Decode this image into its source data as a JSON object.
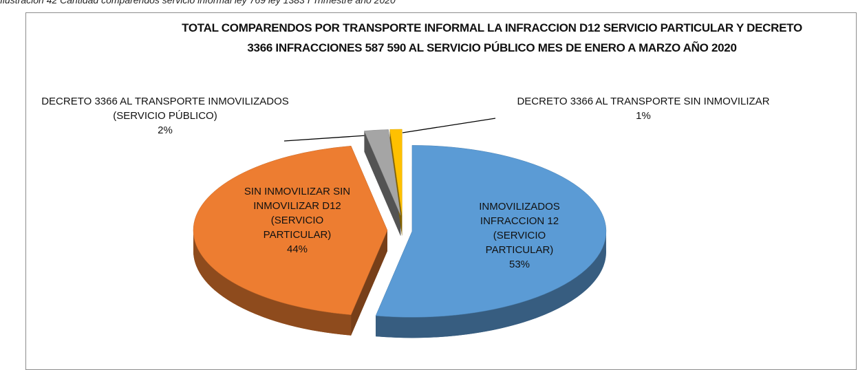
{
  "caption": "Ilustración 42 Cantidad comparendos servicio informal ley 769 ley 1383 I Trimestre año 2020",
  "chart_data": {
    "type": "pie3d",
    "title": "TOTAL COMPARENDOS POR TRANSPORTE INFORMAL LA INFRACCION D12 SERVICIO PARTICULAR Y DECRETO 3366 INFRACCIONES 587 590 AL SERVICIO PÚBLICO MES DE ENERO A MARZO AÑO 2020",
    "categories": [
      "INMOVILIZADOS INFRACCION 12 (SERVICIO PARTICULAR)",
      "SIN INMOVILIZAR SIN INMOVILIZAR D12 (SERVICIO PARTICULAR)",
      "DECRETO 3366 AL TRANSPORTE INMOVILIZADOS (SERVICIO PÚBLICO)",
      "DECRETO 3366 AL TRANSPORTE SIN INMOVILIZAR"
    ],
    "values": [
      53,
      44,
      2,
      1
    ],
    "value_labels": [
      "53%",
      "44%",
      "2%",
      "1%"
    ],
    "colors": [
      "#5b9bd5",
      "#ed7d31",
      "#a5a5a5",
      "#ffc000"
    ]
  }
}
